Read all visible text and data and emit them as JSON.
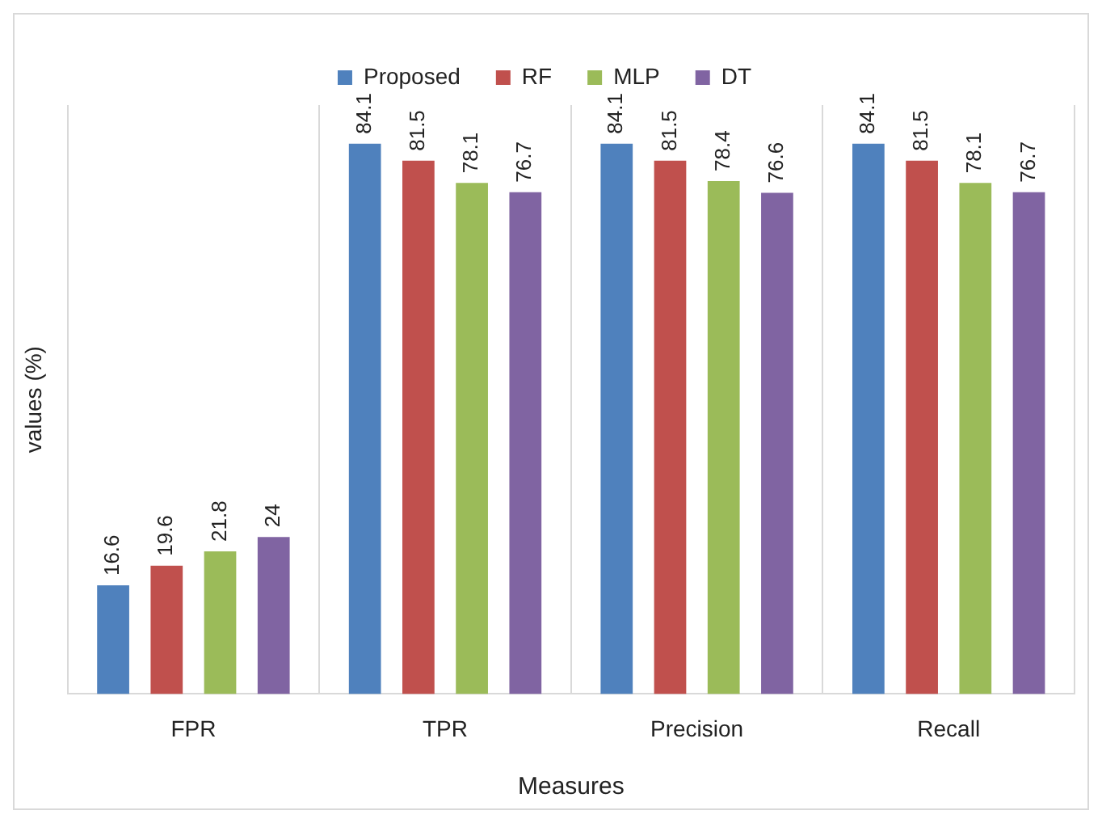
{
  "chart_data": {
    "type": "bar",
    "xlabel": "Measures",
    "ylabel": "values (%)",
    "categories": [
      "FPR",
      "TPR",
      "Precision",
      "Recall"
    ],
    "series": [
      {
        "name": "Proposed",
        "color": "#4f81bd",
        "values": [
          16.6,
          84.1,
          84.1,
          84.1
        ]
      },
      {
        "name": "RF",
        "color": "#c0504d",
        "values": [
          19.6,
          81.5,
          81.5,
          81.5
        ]
      },
      {
        "name": "MLP",
        "color": "#9bbb59",
        "values": [
          21.8,
          78.1,
          78.4,
          78.1
        ]
      },
      {
        "name": "DT",
        "color": "#8064a2",
        "values": [
          24,
          76.7,
          76.6,
          76.7
        ]
      }
    ],
    "ylim": [
      0,
      90
    ],
    "tick_labels": "x",
    "grid": "x",
    "legend": "top",
    "data_labels": true
  }
}
